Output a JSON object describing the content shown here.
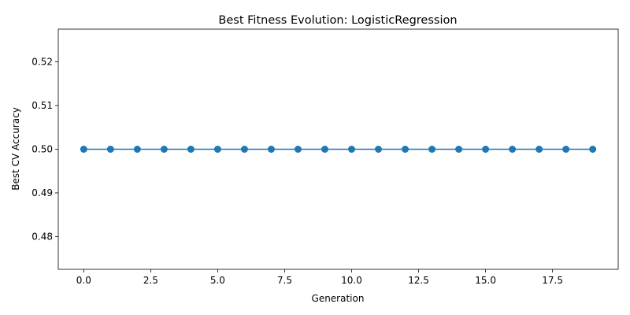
{
  "chart_data": {
    "type": "line",
    "title": "Best Fitness Evolution: LogisticRegression",
    "xlabel": "Generation",
    "ylabel": "Best CV Accuracy",
    "xlim": [
      -0.95,
      19.95
    ],
    "ylim": [
      0.4725,
      0.5275
    ],
    "x_ticks": [
      0.0,
      2.5,
      5.0,
      7.5,
      10.0,
      12.5,
      15.0,
      17.5
    ],
    "x_tick_labels": [
      "0.0",
      "2.5",
      "5.0",
      "7.5",
      "10.0",
      "12.5",
      "15.0",
      "17.5"
    ],
    "y_ticks": [
      0.48,
      0.49,
      0.5,
      0.51,
      0.52
    ],
    "y_tick_labels": [
      "0.48",
      "0.49",
      "0.50",
      "0.51",
      "0.52"
    ],
    "grid": false,
    "series": [
      {
        "color": "#1f77b4",
        "marker": "circle",
        "x": [
          0,
          1,
          2,
          3,
          4,
          5,
          6,
          7,
          8,
          9,
          10,
          11,
          12,
          13,
          14,
          15,
          16,
          17,
          18,
          19
        ],
        "y": [
          0.5,
          0.5,
          0.5,
          0.5,
          0.5,
          0.5,
          0.5,
          0.5,
          0.5,
          0.5,
          0.5,
          0.5,
          0.5,
          0.5,
          0.5,
          0.5,
          0.5,
          0.5,
          0.5,
          0.5
        ]
      }
    ]
  }
}
